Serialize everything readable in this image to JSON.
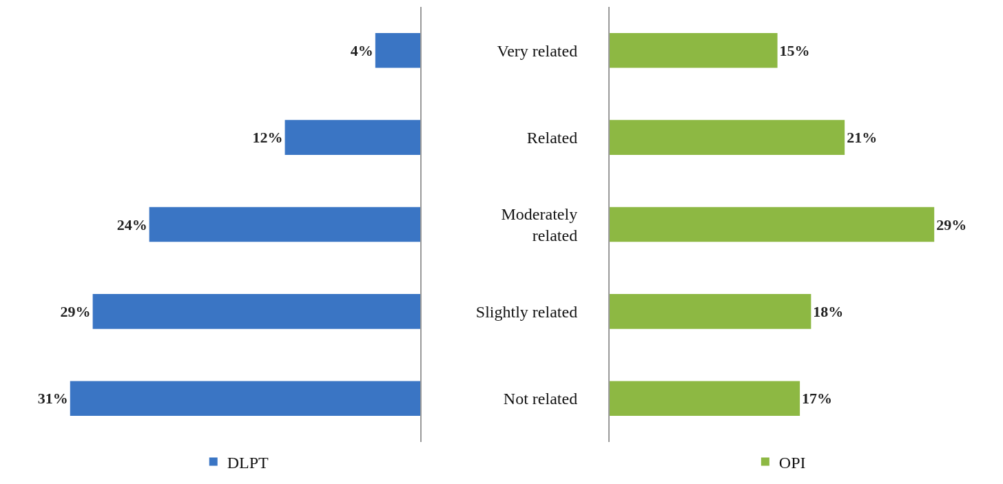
{
  "chart_data": [
    {
      "type": "bar",
      "orientation": "horizontal",
      "categories": [
        "Very related",
        "Related",
        "Moderately related",
        "Slightly related",
        "Not related"
      ],
      "tick_labels": false,
      "legend": "bottom",
      "series": [
        {
          "name": "DLPT",
          "color": "#3a75c4",
          "values": [
            4,
            12,
            24,
            29,
            31
          ],
          "value_labels": [
            "4%",
            "12%",
            "24%",
            "29%",
            "31%"
          ]
        }
      ]
    },
    {
      "type": "bar",
      "orientation": "horizontal",
      "categories": [
        "Very related",
        "Related",
        "Moderately related",
        "Slightly related",
        "Not related"
      ],
      "tick_labels": "y",
      "legend": "bottom",
      "series": [
        {
          "name": "OPI",
          "color": "#8db843",
          "values": [
            15,
            21,
            29,
            18,
            17
          ],
          "value_labels": [
            "15%",
            "21%",
            "29%",
            "18%",
            "17%"
          ]
        }
      ]
    }
  ]
}
